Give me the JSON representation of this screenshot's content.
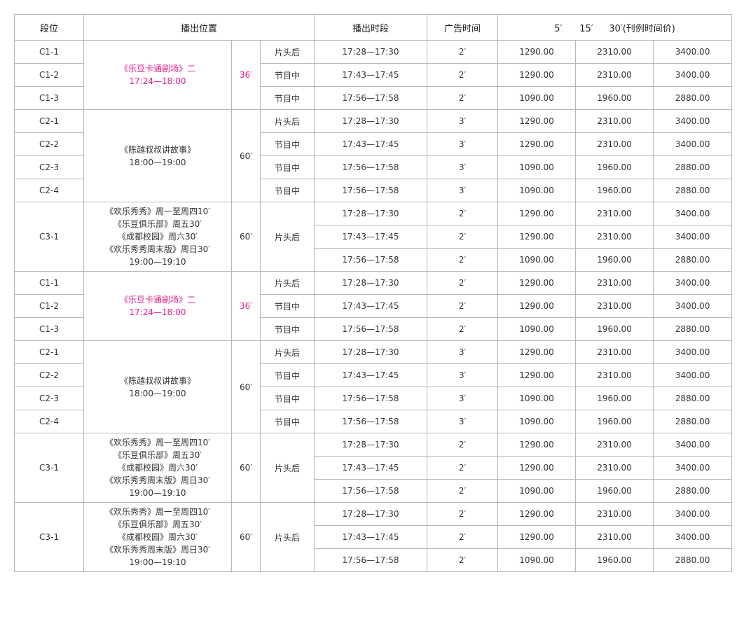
{
  "colors": {
    "highlight": "#e91e8c",
    "border": "#b8b8b8",
    "text": "#333333"
  },
  "header": {
    "segment": "段位",
    "position": "播出位置",
    "slot": "播出时段",
    "ad_time": "广告时间",
    "rate_5": "5′",
    "rate_15": "15′",
    "rate_30": "30′",
    "rate_note": "(刊例时间价)"
  },
  "groups": [
    {
      "highlight": true,
      "program_lines": [
        "《乐豆卡通剧场》二",
        "17:24—18:00"
      ],
      "duration": "36′",
      "rows": [
        {
          "segment": "C1-1",
          "position": "片头后",
          "slot": "17:28—17:30",
          "ad": "2′",
          "p5": "1290.00",
          "p15": "2310.00",
          "p30": "3400.00"
        },
        {
          "segment": "C1-2",
          "position": "节目中",
          "slot": "17:43—17:45",
          "ad": "2′",
          "p5": "1290.00",
          "p15": "2310.00",
          "p30": "3400.00"
        },
        {
          "segment": "C1-3",
          "position": "节目中",
          "slot": "17:56—17:58",
          "ad": "2′",
          "p5": "1090.00",
          "p15": "1960.00",
          "p30": "2880.00"
        }
      ]
    },
    {
      "highlight": false,
      "program_lines": [
        "《陈越叔叔讲故事》",
        "18:00—19:00"
      ],
      "duration": "60′",
      "rows": [
        {
          "segment": "C2-1",
          "position": "片头后",
          "slot": "17:28—17:30",
          "ad": "3′",
          "p5": "1290.00",
          "p15": "2310.00",
          "p30": "3400.00"
        },
        {
          "segment": "C2-2",
          "position": "节目中",
          "slot": "17:43—17:45",
          "ad": "3′",
          "p5": "1290.00",
          "p15": "2310.00",
          "p30": "3400.00"
        },
        {
          "segment": "C2-3",
          "position": "节目中",
          "slot": "17:56—17:58",
          "ad": "3′",
          "p5": "1090.00",
          "p15": "1960.00",
          "p30": "2880.00"
        },
        {
          "segment": "C2-4",
          "position": "节目中",
          "slot": "17:56—17:58",
          "ad": "3′",
          "p5": "1090.00",
          "p15": "1960.00",
          "p30": "2880.00"
        }
      ]
    },
    {
      "highlight": false,
      "merged": true,
      "segment": "C3-1",
      "position": "片头后",
      "program_lines": [
        "《欢乐秀秀》周一至周四10′",
        "《乐豆俱乐部》周五30′",
        "《成都校园》周六30′",
        "《欢乐秀秀周末版》周日30′",
        "19:00—19:10"
      ],
      "duration": "60′",
      "rows": [
        {
          "slot": "17:28—17:30",
          "ad": "2′",
          "p5": "1290.00",
          "p15": "2310.00",
          "p30": "3400.00"
        },
        {
          "slot": "17:43—17:45",
          "ad": "2′",
          "p5": "1290.00",
          "p15": "2310.00",
          "p30": "3400.00"
        },
        {
          "slot": "17:56—17:58",
          "ad": "2′",
          "p5": "1090.00",
          "p15": "1960.00",
          "p30": "2880.00"
        }
      ]
    },
    {
      "highlight": true,
      "program_lines": [
        "《乐豆卡通剧场》二",
        "17:24—18:00"
      ],
      "duration": "36′",
      "rows": [
        {
          "segment": "C1-1",
          "position": "片头后",
          "slot": "17:28—17:30",
          "ad": "2′",
          "p5": "1290.00",
          "p15": "2310.00",
          "p30": "3400.00"
        },
        {
          "segment": "C1-2",
          "position": "节目中",
          "slot": "17:43—17:45",
          "ad": "2′",
          "p5": "1290.00",
          "p15": "2310.00",
          "p30": "3400.00"
        },
        {
          "segment": "C1-3",
          "position": "节目中",
          "slot": "17:56—17:58",
          "ad": "2′",
          "p5": "1090.00",
          "p15": "1960.00",
          "p30": "2880.00"
        }
      ]
    },
    {
      "highlight": false,
      "program_lines": [
        "《陈越叔叔讲故事》",
        "18:00—19:00"
      ],
      "duration": "60′",
      "rows": [
        {
          "segment": "C2-1",
          "position": "片头后",
          "slot": "17:28—17:30",
          "ad": "3′",
          "p5": "1290.00",
          "p15": "2310.00",
          "p30": "3400.00"
        },
        {
          "segment": "C2-2",
          "position": "节目中",
          "slot": "17:43—17:45",
          "ad": "3′",
          "p5": "1290.00",
          "p15": "2310.00",
          "p30": "3400.00"
        },
        {
          "segment": "C2-3",
          "position": "节目中",
          "slot": "17:56—17:58",
          "ad": "3′",
          "p5": "1090.00",
          "p15": "1960.00",
          "p30": "2880.00"
        },
        {
          "segment": "C2-4",
          "position": "节目中",
          "slot": "17:56—17:58",
          "ad": "3′",
          "p5": "1090.00",
          "p15": "1960.00",
          "p30": "2880.00"
        }
      ]
    },
    {
      "highlight": false,
      "merged": true,
      "segment": "C3-1",
      "position": "片头后",
      "program_lines": [
        "《欢乐秀秀》周一至周四10′",
        "《乐豆俱乐部》周五30′",
        "《成都校园》周六30′",
        "《欢乐秀秀周末版》周日30′",
        "19:00—19:10"
      ],
      "duration": "60′",
      "rows": [
        {
          "slot": "17:28—17:30",
          "ad": "2′",
          "p5": "1290.00",
          "p15": "2310.00",
          "p30": "3400.00"
        },
        {
          "slot": "17:43—17:45",
          "ad": "2′",
          "p5": "1290.00",
          "p15": "2310.00",
          "p30": "3400.00"
        },
        {
          "slot": "17:56—17:58",
          "ad": "2′",
          "p5": "1090.00",
          "p15": "1960.00",
          "p30": "2880.00"
        }
      ]
    },
    {
      "highlight": false,
      "merged": true,
      "segment": "C3-1",
      "position": "片头后",
      "program_lines": [
        "《欢乐秀秀》周一至周四10′",
        "《乐豆俱乐部》周五30′",
        "《成都校园》周六30′",
        "《欢乐秀秀周末版》周日30′",
        "19:00—19:10"
      ],
      "duration": "60′",
      "rows": [
        {
          "slot": "17:28—17:30",
          "ad": "2′",
          "p5": "1290.00",
          "p15": "2310.00",
          "p30": "3400.00"
        },
        {
          "slot": "17:43—17:45",
          "ad": "2′",
          "p5": "1290.00",
          "p15": "2310.00",
          "p30": "3400.00"
        },
        {
          "slot": "17:56—17:58",
          "ad": "2′",
          "p5": "1090.00",
          "p15": "1960.00",
          "p30": "2880.00"
        }
      ]
    }
  ]
}
